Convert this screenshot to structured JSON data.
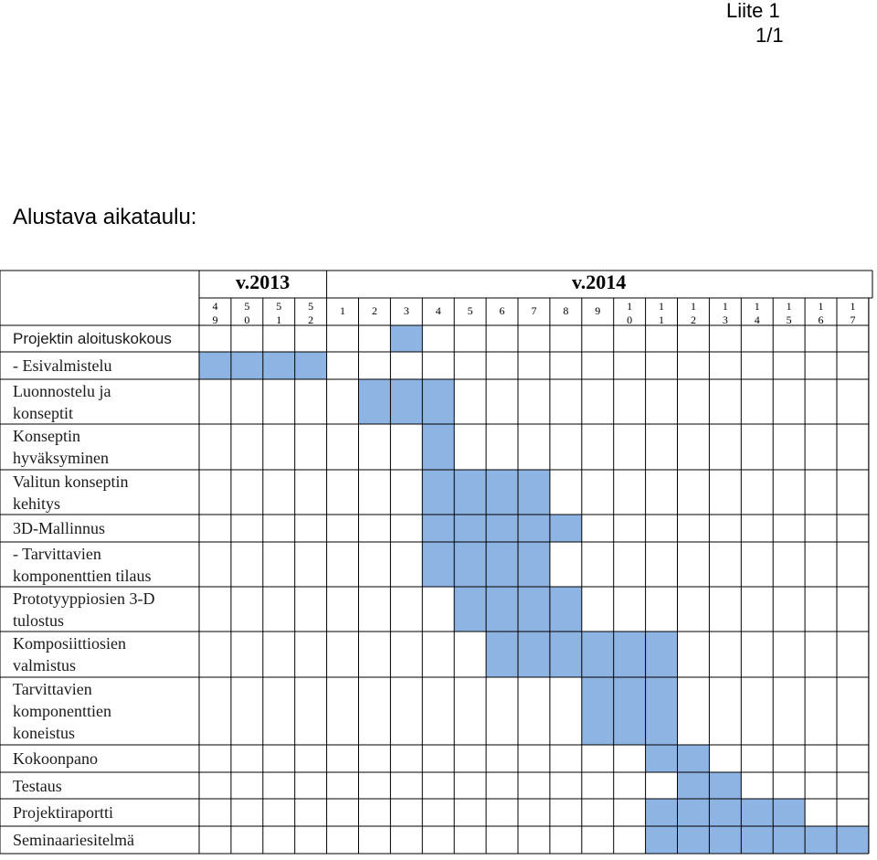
{
  "page_header": {
    "line1": "Liite 1",
    "line2": "1/1"
  },
  "title": "Alustava aikataulu:",
  "years": [
    {
      "label": "v.2013"
    },
    {
      "label": "v.2014"
    }
  ],
  "weeks": [
    {
      "t": "4",
      "b": "9"
    },
    {
      "t": "5",
      "b": "0"
    },
    {
      "t": "5",
      "b": "1"
    },
    {
      "t": "5",
      "b": "2"
    },
    {
      "t": "1",
      "b": ""
    },
    {
      "t": "2",
      "b": ""
    },
    {
      "t": "3",
      "b": ""
    },
    {
      "t": "4",
      "b": ""
    },
    {
      "t": "5",
      "b": ""
    },
    {
      "t": "6",
      "b": ""
    },
    {
      "t": "7",
      "b": ""
    },
    {
      "t": "8",
      "b": ""
    },
    {
      "t": "9",
      "b": ""
    },
    {
      "t": "1",
      "b": "0"
    },
    {
      "t": "1",
      "b": "1"
    },
    {
      "t": "1",
      "b": "2"
    },
    {
      "t": "1",
      "b": "3"
    },
    {
      "t": "1",
      "b": "4"
    },
    {
      "t": "1",
      "b": "5"
    },
    {
      "t": "1",
      "b": "6"
    },
    {
      "t": "1",
      "b": "7"
    }
  ],
  "rows": [
    {
      "label": [
        "Projektin aloituskokous"
      ],
      "sans": true,
      "filled": [
        6
      ]
    },
    {
      "label": [
        "- Esivalmistelu"
      ],
      "filled": [
        0,
        1,
        2,
        3
      ]
    },
    {
      "label": [
        "Luonnostelu ja",
        "konseptit"
      ],
      "filled": [
        5,
        6,
        7
      ]
    },
    {
      "label": [
        "Konseptin",
        "hyväksyminen"
      ],
      "filled": [
        7
      ]
    },
    {
      "label": [
        "Valitun konseptin",
        "kehitys"
      ],
      "filled": [
        7,
        8,
        9,
        10
      ]
    },
    {
      "label": [
        "3D-Mallinnus"
      ],
      "filled": [
        7,
        8,
        9,
        10,
        11
      ]
    },
    {
      "label": [
        "- Tarvittavien",
        "komponenttien tilaus"
      ],
      "filled": [
        7,
        8,
        9,
        10
      ]
    },
    {
      "label": [
        "Prototyyppiosien 3-D",
        "tulostus"
      ],
      "filled": [
        8,
        9,
        10,
        11
      ]
    },
    {
      "label": [
        "Komposiittiosien",
        "valmistus"
      ],
      "filled": [
        9,
        10,
        11,
        12,
        13,
        14
      ]
    },
    {
      "label": [
        "Tarvittavien",
        "komponenttien",
        "koneistus"
      ],
      "filled": [
        12,
        13,
        14
      ]
    },
    {
      "label": [
        "Kokoonpano"
      ],
      "filled": [
        14,
        15
      ]
    },
    {
      "label": [
        "Testaus"
      ],
      "filled": [
        15,
        16
      ]
    },
    {
      "label": [
        "Projektiraportti"
      ],
      "filled": [
        14,
        15,
        16,
        17,
        18
      ]
    },
    {
      "label": [
        "Seminaariesitelmä"
      ],
      "filled": [
        14,
        15,
        16,
        17,
        18,
        19,
        20
      ]
    }
  ],
  "colors": {
    "filled": "#8EB4E3",
    "grid": "#000000"
  }
}
